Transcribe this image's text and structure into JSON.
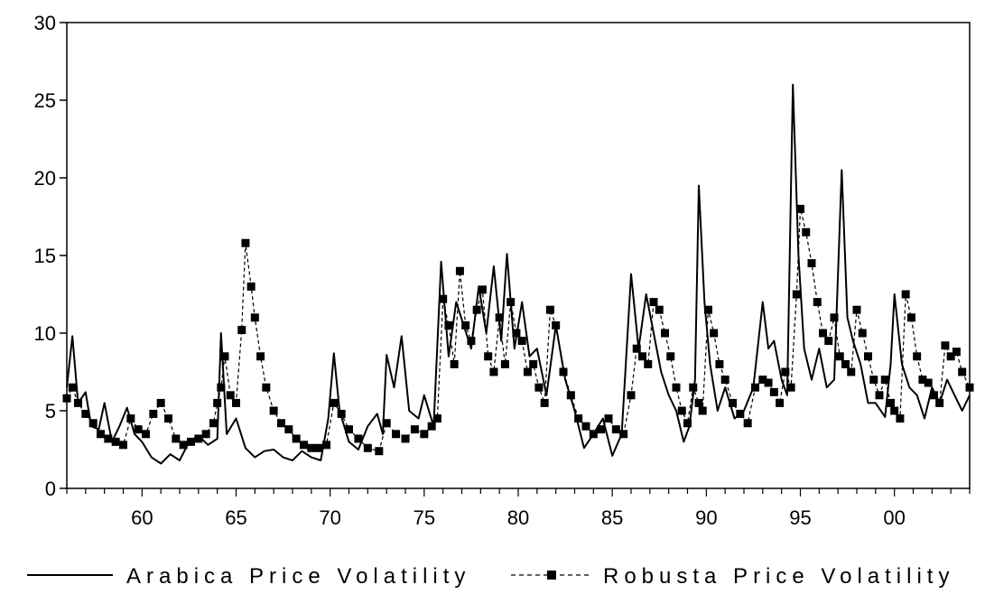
{
  "chart_data": {
    "type": "line",
    "title": "",
    "xlabel": "",
    "ylabel": "",
    "xlim": [
      1956,
      2004
    ],
    "ylim": [
      0,
      30
    ],
    "y_ticks": [
      0,
      5,
      10,
      15,
      20,
      25,
      30
    ],
    "x_ticks": [
      {
        "value": 1960,
        "label": "60"
      },
      {
        "value": 1965,
        "label": "65"
      },
      {
        "value": 1970,
        "label": "70"
      },
      {
        "value": 1975,
        "label": "75"
      },
      {
        "value": 1980,
        "label": "80"
      },
      {
        "value": 1985,
        "label": "85"
      },
      {
        "value": 1990,
        "label": "90"
      },
      {
        "value": 1995,
        "label": "95"
      },
      {
        "value": 2000,
        "label": "00"
      }
    ],
    "grid": false,
    "legend_position": "bottom",
    "series": [
      {
        "name": "Arabica Price Volatility",
        "style": "solid",
        "color": "#000000",
        "x": [
          1956.0,
          1956.3,
          1956.6,
          1957.0,
          1957.3,
          1957.7,
          1958.0,
          1958.4,
          1958.8,
          1959.2,
          1959.6,
          1960.0,
          1960.5,
          1961.0,
          1961.5,
          1962.0,
          1962.5,
          1963.0,
          1963.5,
          1964.0,
          1964.2,
          1964.5,
          1965.0,
          1965.5,
          1966.0,
          1966.5,
          1967.0,
          1967.5,
          1968.0,
          1968.5,
          1969.0,
          1969.5,
          1969.9,
          1970.2,
          1970.5,
          1971.0,
          1971.5,
          1972.0,
          1972.5,
          1972.8,
          1973.0,
          1973.4,
          1973.8,
          1974.2,
          1974.7,
          1975.0,
          1975.5,
          1975.9,
          1976.3,
          1976.7,
          1977.1,
          1977.5,
          1977.9,
          1978.3,
          1978.7,
          1979.1,
          1979.4,
          1979.8,
          1980.2,
          1980.6,
          1981.0,
          1981.5,
          1982.0,
          1982.5,
          1983.0,
          1983.5,
          1984.0,
          1984.5,
          1985.0,
          1985.5,
          1986.0,
          1986.4,
          1986.8,
          1987.2,
          1987.6,
          1988.0,
          1988.4,
          1988.8,
          1989.1,
          1989.4,
          1989.6,
          1989.9,
          1990.2,
          1990.6,
          1991.0,
          1991.5,
          1992.0,
          1992.5,
          1993.0,
          1993.3,
          1993.6,
          1994.0,
          1994.3,
          1994.6,
          1994.9,
          1995.2,
          1995.6,
          1996.0,
          1996.4,
          1996.8,
          1997.2,
          1997.5,
          1997.8,
          1998.2,
          1998.6,
          1999.0,
          1999.5,
          1999.8,
          2000.0,
          2000.4,
          2000.8,
          2001.2,
          2001.6,
          2002.0,
          2002.4,
          2002.8,
          2003.2,
          2003.6,
          2004.0
        ],
        "values": [
          6.5,
          9.8,
          5.5,
          6.2,
          4.0,
          3.8,
          5.5,
          3.0,
          4.0,
          5.2,
          3.5,
          3.0,
          2.0,
          1.6,
          2.2,
          1.8,
          3.0,
          3.4,
          2.8,
          3.2,
          10.0,
          3.5,
          4.5,
          2.6,
          2.0,
          2.4,
          2.5,
          2.0,
          1.8,
          2.4,
          2.0,
          1.8,
          4.5,
          8.7,
          5.0,
          3.0,
          2.5,
          4.0,
          4.8,
          3.5,
          8.6,
          6.5,
          9.8,
          5.0,
          4.5,
          6.0,
          4.0,
          14.6,
          8.5,
          12.0,
          10.5,
          9.0,
          13.0,
          10.0,
          14.3,
          9.5,
          15.1,
          9.0,
          12.0,
          8.5,
          9.0,
          6.0,
          10.5,
          7.0,
          5.0,
          2.6,
          3.5,
          4.5,
          2.1,
          3.5,
          13.8,
          9.0,
          12.5,
          10.0,
          7.5,
          6.0,
          5.0,
          3.0,
          4.0,
          7.0,
          19.5,
          12.0,
          8.0,
          5.0,
          6.5,
          4.5,
          5.0,
          6.5,
          12.0,
          9.0,
          9.5,
          7.0,
          6.0,
          26.0,
          15.0,
          9.0,
          7.0,
          9.0,
          6.5,
          7.0,
          20.5,
          11.0,
          9.5,
          8.0,
          5.5,
          5.5,
          4.6,
          8.0,
          12.5,
          8.0,
          6.5,
          6.0,
          4.5,
          6.5,
          5.5,
          7.0,
          6.0,
          5.0,
          6.0
        ]
      },
      {
        "name": "Robusta Price Volatility",
        "style": "dashed-square-markers",
        "color": "#000000",
        "x": [
          1956.0,
          1956.3,
          1956.6,
          1957.0,
          1957.4,
          1957.8,
          1958.2,
          1958.6,
          1959.0,
          1959.4,
          1959.8,
          1960.2,
          1960.6,
          1961.0,
          1961.4,
          1961.8,
          1962.2,
          1962.6,
          1963.0,
          1963.4,
          1963.8,
          1964.0,
          1964.2,
          1964.4,
          1964.7,
          1965.0,
          1965.3,
          1965.5,
          1965.8,
          1966.0,
          1966.3,
          1966.6,
          1967.0,
          1967.4,
          1967.8,
          1968.2,
          1968.6,
          1969.0,
          1969.4,
          1969.8,
          1970.2,
          1970.6,
          1971.0,
          1971.5,
          1972.0,
          1972.6,
          1973.0,
          1973.5,
          1974.0,
          1974.5,
          1975.0,
          1975.4,
          1975.7,
          1976.0,
          1976.3,
          1976.6,
          1976.9,
          1977.2,
          1977.5,
          1977.8,
          1978.1,
          1978.4,
          1978.7,
          1979.0,
          1979.3,
          1979.6,
          1979.9,
          1980.2,
          1980.5,
          1980.8,
          1981.1,
          1981.4,
          1981.7,
          1982.0,
          1982.4,
          1982.8,
          1983.2,
          1983.6,
          1984.0,
          1984.4,
          1984.8,
          1985.2,
          1985.6,
          1986.0,
          1986.3,
          1986.6,
          1986.9,
          1987.2,
          1987.5,
          1987.8,
          1988.1,
          1988.4,
          1988.7,
          1989.0,
          1989.3,
          1989.6,
          1989.8,
          1990.1,
          1990.4,
          1990.7,
          1991.0,
          1991.4,
          1991.8,
          1992.2,
          1992.6,
          1993.0,
          1993.3,
          1993.6,
          1993.9,
          1994.2,
          1994.5,
          1994.8,
          1995.0,
          1995.3,
          1995.6,
          1995.9,
          1996.2,
          1996.5,
          1996.8,
          1997.1,
          1997.4,
          1997.7,
          1998.0,
          1998.3,
          1998.6,
          1998.9,
          1999.2,
          1999.5,
          1999.8,
          2000.0,
          2000.3,
          2000.6,
          2000.9,
          2001.2,
          2001.5,
          2001.8,
          2002.1,
          2002.4,
          2002.7,
          2003.0,
          2003.3,
          2003.6,
          2004.0
        ],
        "values": [
          5.8,
          6.5,
          5.5,
          4.8,
          4.2,
          3.5,
          3.2,
          3.0,
          2.8,
          4.5,
          3.8,
          3.5,
          4.8,
          5.5,
          4.5,
          3.2,
          2.8,
          3.0,
          3.2,
          3.5,
          4.2,
          5.5,
          6.5,
          8.5,
          6.0,
          5.5,
          10.2,
          15.8,
          13.0,
          11.0,
          8.5,
          6.5,
          5.0,
          4.2,
          3.8,
          3.2,
          2.8,
          2.6,
          2.6,
          2.8,
          5.5,
          4.8,
          3.8,
          3.2,
          2.6,
          2.4,
          4.2,
          3.5,
          3.2,
          3.8,
          3.5,
          4.0,
          4.5,
          12.2,
          10.5,
          8.0,
          14.0,
          10.5,
          9.5,
          11.5,
          12.8,
          8.5,
          7.5,
          11.0,
          8.0,
          12.0,
          10.0,
          9.5,
          7.5,
          8.0,
          6.5,
          5.5,
          11.5,
          10.5,
          7.5,
          6.0,
          4.5,
          4.0,
          3.5,
          3.8,
          4.5,
          3.8,
          3.5,
          6.0,
          9.0,
          8.5,
          8.0,
          12.0,
          11.5,
          10.0,
          8.5,
          6.5,
          5.0,
          4.2,
          6.5,
          5.5,
          5.0,
          11.5,
          10.0,
          8.0,
          7.0,
          5.5,
          4.8,
          4.2,
          6.5,
          7.0,
          6.8,
          6.2,
          5.5,
          7.5,
          6.5,
          12.5,
          18.0,
          16.5,
          14.5,
          12.0,
          10.0,
          9.5,
          11.0,
          8.5,
          8.0,
          7.5,
          11.5,
          10.0,
          8.5,
          7.0,
          6.0,
          7.0,
          5.5,
          5.0,
          4.5,
          12.5,
          11.0,
          8.5,
          7.0,
          6.8,
          6.0,
          5.5,
          9.2,
          8.5,
          8.8,
          7.5,
          6.5
        ]
      }
    ]
  }
}
